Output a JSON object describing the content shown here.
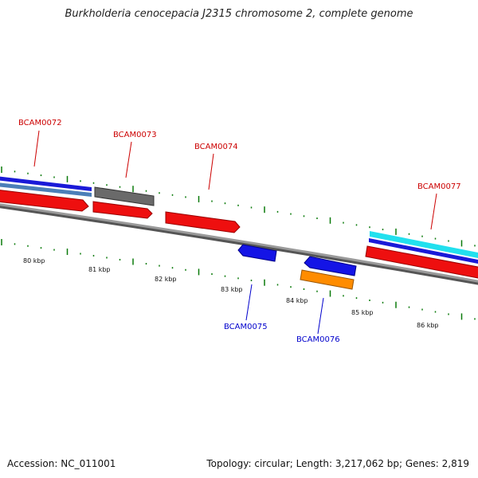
{
  "title": "Burkholderia cenocepacia J2315 chromosome 2, complete genome",
  "footer": {
    "accession": "Accession: NC_011001",
    "topology": "Topology: circular; Length: 3,217,062 bp; Genes: 2,819"
  },
  "colors": {
    "backbone": "#888888",
    "tick": "#0a7a0a",
    "label_forward": "#cc0000",
    "label_reverse": "#0000cc"
  },
  "ticks": [
    {
      "label": "80 kbp"
    },
    {
      "label": "81 kbp"
    },
    {
      "label": "82 kbp"
    },
    {
      "label": "83 kbp"
    },
    {
      "label": "84 kbp"
    },
    {
      "label": "85 kbp"
    },
    {
      "label": "86 kbp"
    }
  ],
  "genes": [
    {
      "name": "BCAM0072",
      "strand": "forward"
    },
    {
      "name": "BCAM0073",
      "strand": "forward"
    },
    {
      "name": "BCAM0074",
      "strand": "forward"
    },
    {
      "name": "BCAM0075",
      "strand": "reverse"
    },
    {
      "name": "BCAM0076",
      "strand": "reverse"
    },
    {
      "name": "BCAM0077",
      "strand": "forward"
    }
  ]
}
